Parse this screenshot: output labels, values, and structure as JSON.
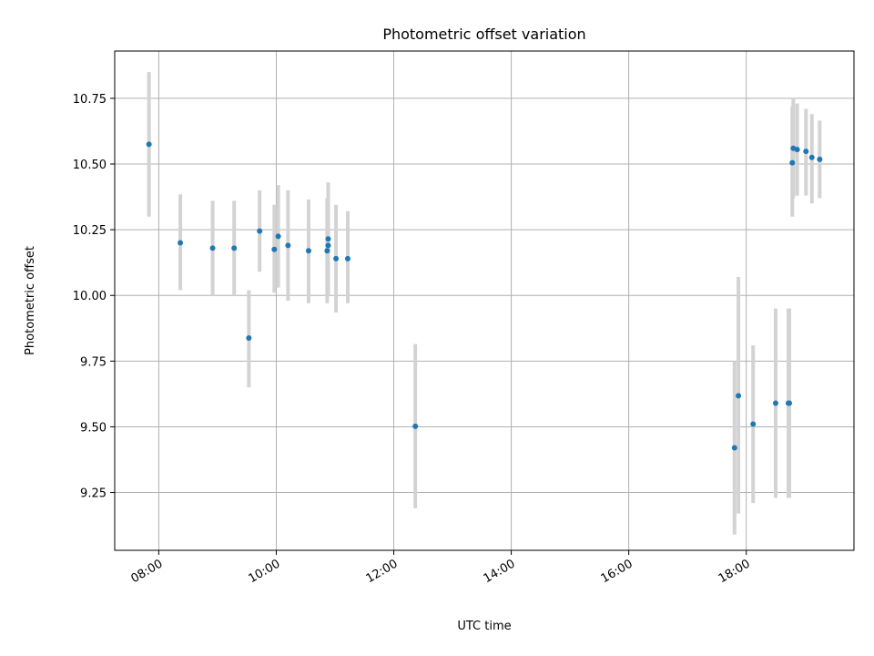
{
  "chart_data": {
    "type": "scatter",
    "title": "Photometric offset variation",
    "xlabel": "UTC time",
    "ylabel": "Photometric offset",
    "xlim": [
      "07:15",
      "19:50"
    ],
    "ylim": [
      9.03,
      10.93
    ],
    "grid": true,
    "x_ticks": [
      "08:00",
      "10:00",
      "12:00",
      "14:00",
      "16:00",
      "18:00"
    ],
    "y_ticks": [
      9.25,
      9.5,
      9.75,
      10.0,
      10.25,
      10.5,
      10.75
    ],
    "y_tick_labels": [
      "9.25",
      "9.50",
      "9.75",
      "10.00",
      "10.25",
      "10.50",
      "10.75"
    ],
    "marker_color": "#1f77b4",
    "errorbar_color": "#d3d3d3",
    "points": [
      {
        "x": "07:50",
        "y": 10.575,
        "err_low": 10.3,
        "err_high": 10.85
      },
      {
        "x": "08:22",
        "y": 10.2,
        "err_low": 10.02,
        "err_high": 10.385
      },
      {
        "x": "08:55",
        "y": 10.18,
        "err_low": 10.0,
        "err_high": 10.36
      },
      {
        "x": "09:17",
        "y": 10.18,
        "err_low": 10.0,
        "err_high": 10.36
      },
      {
        "x": "09:32",
        "y": 9.838,
        "err_low": 9.65,
        "err_high": 10.02
      },
      {
        "x": "09:43",
        "y": 10.245,
        "err_low": 10.09,
        "err_high": 10.4
      },
      {
        "x": "09:58",
        "y": 10.175,
        "err_low": 10.01,
        "err_high": 10.345
      },
      {
        "x": "10:02",
        "y": 10.225,
        "err_low": 10.03,
        "err_high": 10.42
      },
      {
        "x": "10:12",
        "y": 10.19,
        "err_low": 9.98,
        "err_high": 10.4
      },
      {
        "x": "10:33",
        "y": 10.17,
        "err_low": 9.97,
        "err_high": 10.365
      },
      {
        "x": "10:52",
        "y": 10.17,
        "err_low": 9.97,
        "err_high": 10.37
      },
      {
        "x": "10:53",
        "y": 10.19,
        "err_low": 10.0,
        "err_high": 10.38
      },
      {
        "x": "10:53",
        "y": 10.215,
        "err_low": 10.0,
        "err_high": 10.43
      },
      {
        "x": "11:01",
        "y": 10.14,
        "err_low": 9.935,
        "err_high": 10.345
      },
      {
        "x": "11:13",
        "y": 10.14,
        "err_low": 9.97,
        "err_high": 10.32
      },
      {
        "x": "12:22",
        "y": 9.502,
        "err_low": 9.19,
        "err_high": 9.815
      },
      {
        "x": "17:48",
        "y": 9.42,
        "err_low": 9.09,
        "err_high": 9.75
      },
      {
        "x": "17:52",
        "y": 9.618,
        "err_low": 9.17,
        "err_high": 10.07
      },
      {
        "x": "18:07",
        "y": 9.51,
        "err_low": 9.21,
        "err_high": 9.81
      },
      {
        "x": "18:30",
        "y": 9.59,
        "err_low": 9.23,
        "err_high": 9.95
      },
      {
        "x": "18:43",
        "y": 9.59,
        "err_low": 9.23,
        "err_high": 9.95
      },
      {
        "x": "18:44",
        "y": 9.59,
        "err_low": 9.23,
        "err_high": 9.95
      },
      {
        "x": "18:47",
        "y": 10.505,
        "err_low": 10.3,
        "err_high": 10.72
      },
      {
        "x": "18:48",
        "y": 10.56,
        "err_low": 10.37,
        "err_high": 10.75
      },
      {
        "x": "18:52",
        "y": 10.555,
        "err_low": 10.38,
        "err_high": 10.73
      },
      {
        "x": "19:01",
        "y": 10.548,
        "err_low": 10.38,
        "err_high": 10.71
      },
      {
        "x": "19:07",
        "y": 10.525,
        "err_low": 10.35,
        "err_high": 10.69
      },
      {
        "x": "19:15",
        "y": 10.518,
        "err_low": 10.37,
        "err_high": 10.665
      }
    ]
  }
}
